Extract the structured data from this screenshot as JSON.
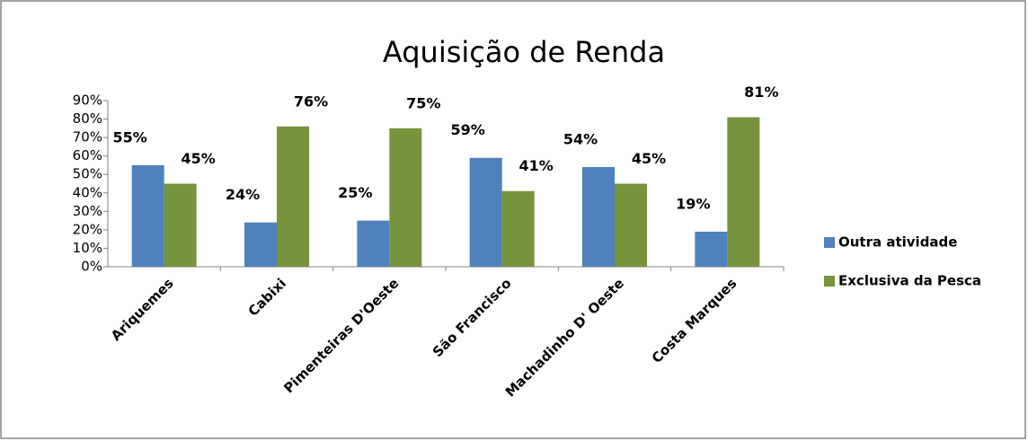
{
  "chart_data": {
    "type": "bar",
    "title": "Aquisição de Renda",
    "categories": [
      "Ariquemes",
      "Cabixi",
      "Pimenteiras D'Oeste",
      "São Francisco",
      "Machadinho D' Oeste",
      "Costa Marques"
    ],
    "series": [
      {
        "name": "Outra atividade",
        "color": "#4f81bd",
        "values": [
          55,
          24,
          25,
          59,
          54,
          19
        ],
        "value_labels": [
          "55%",
          "24%",
          "25%",
          "59%",
          "54%",
          "19%"
        ]
      },
      {
        "name": "Exclusiva da Pesca",
        "color": "#77933c",
        "values": [
          45,
          76,
          75,
          41,
          45,
          81
        ],
        "value_labels": [
          "45%",
          "76%",
          "75%",
          "41%",
          "45%",
          "81%"
        ]
      }
    ],
    "ylim": [
      0,
      90
    ],
    "yticks": [
      {
        "value": 0,
        "label": "0%"
      },
      {
        "value": 10,
        "label": "10%"
      },
      {
        "value": 20,
        "label": "20%"
      },
      {
        "value": 30,
        "label": "30%"
      },
      {
        "value": 40,
        "label": "40%"
      },
      {
        "value": 50,
        "label": "50%"
      },
      {
        "value": 60,
        "label": "60%"
      },
      {
        "value": 70,
        "label": "70%"
      },
      {
        "value": 80,
        "label": "80%"
      },
      {
        "value": 90,
        "label": "90%"
      }
    ],
    "legend": "right"
  }
}
